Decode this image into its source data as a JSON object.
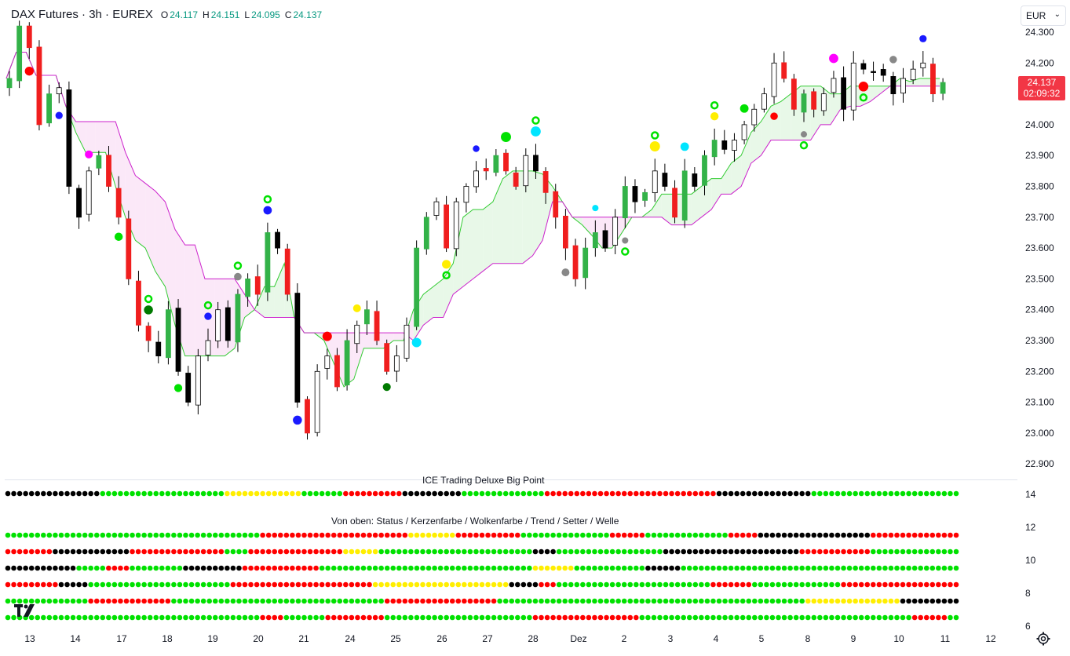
{
  "header": {
    "symbol": "DAX Futures · 3h · EUREX",
    "ohlc": [
      {
        "key": "O",
        "value": "24.117"
      },
      {
        "key": "H",
        "value": "24.151"
      },
      {
        "key": "L",
        "value": "24.095"
      },
      {
        "key": "C",
        "value": "24.137"
      }
    ]
  },
  "currency": "EUR",
  "last_price": {
    "price": "24.137",
    "countdown": "02:09:32"
  },
  "price_axis": [
    "24.300",
    "24.200",
    "24.100",
    "24.000",
    "23.900",
    "23.800",
    "23.700",
    "23.600",
    "23.500",
    "23.400",
    "23.300",
    "23.200",
    "23.100",
    "23.000",
    "22.900"
  ],
  "time_axis": [
    "13",
    "14",
    "17",
    "18",
    "19",
    "20",
    "21",
    "24",
    "25",
    "26",
    "27",
    "28",
    "Dez",
    "2",
    "3",
    "4",
    "5",
    "8",
    "9",
    "10",
    "11",
    "12"
  ],
  "indicator": {
    "title": "ICE Trading Deluxe Big Point",
    "subtitle": "Von oben: Status / Kerzenfarbe / Wolkenfarbe / Trend / Setter / Welle",
    "axis": [
      "14",
      "12",
      "10",
      "8",
      "6"
    ]
  },
  "colors": {
    "bull": "#33b248",
    "bear": "#f01e1e",
    "neutral": "#ffffff",
    "cloud_bull": "#e8f8e8",
    "cloud_bear": "#fbe8f8",
    "kijun": "#33cc33",
    "senkou": "#cc22cc",
    "dot_green": "#00e100",
    "dot_red": "#ff0000",
    "dot_black": "#000000",
    "dot_yellow": "#ffee00",
    "price_tag": "#f23645"
  },
  "chart_data": {
    "type": "candlestick",
    "title": "DAX Futures · 3h · EUREX",
    "ylim": [
      22850,
      24340
    ],
    "close_path": [
      24150,
      24320,
      24250,
      24000,
      24100,
      24120,
      23800,
      23700,
      23850,
      23900,
      23800,
      23700,
      23500,
      23350,
      23300,
      23250,
      23400,
      23200,
      23100,
      23250,
      23300,
      23400,
      23300,
      23450,
      23500,
      23450,
      23650,
      23600,
      23450,
      23100,
      23000,
      23200,
      23250,
      23150,
      23300,
      23350,
      23400,
      23300,
      23200,
      23250,
      23350,
      23600,
      23700,
      23750,
      23600,
      23750,
      23800,
      23850,
      23850,
      23900,
      23850,
      23800,
      23900,
      23850,
      23780,
      23700,
      23600,
      23500,
      23600,
      23650,
      23600,
      23700,
      23800,
      23750,
      23780,
      23850,
      23800,
      23700,
      23850,
      23800,
      23900,
      23950,
      23920,
      23950,
      24000,
      24050,
      24100,
      24200,
      24150,
      24050,
      24100,
      24050,
      24100,
      24150,
      24050,
      24200,
      24180,
      24170,
      24160,
      24100,
      24150,
      24180,
      24200,
      24100,
      24137
    ],
    "markers": "signal dots above/below candles (green, red, blue, cyan, yellow, magenta, grey)"
  }
}
